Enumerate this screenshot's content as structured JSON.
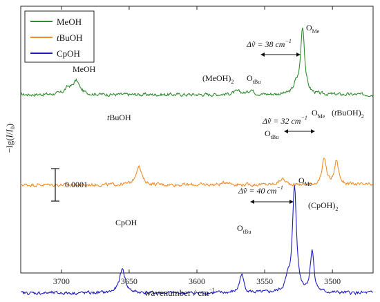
{
  "chart_data": {
    "type": "line",
    "xlabel_main": "wavenumber / cm",
    "xlabel_sup": "−1",
    "ylabel_main": "−lg(",
    "ylabel_I": "I",
    "ylabel_slash": "/",
    "ylabel_I0": "I",
    "ylabel_sub": "0",
    "ylabel_end": ")",
    "x_reversed": true,
    "xlim": [
      3730,
      3470
    ],
    "xticks": [
      3700,
      3650,
      3600,
      3550,
      3500
    ],
    "scale_bar_label": "0.0001",
    "legend": {
      "placement": "top-left",
      "entries": [
        {
          "name": "MeOH",
          "italic_prefix": "",
          "color": "#2e8b2e"
        },
        {
          "name": "BuOH",
          "italic_prefix": "t",
          "color": "#f28c28"
        },
        {
          "name": "CpOH",
          "italic_prefix": "",
          "color": "#1c1cbf"
        }
      ]
    },
    "series": [
      {
        "name": "MeOH",
        "color": "#2e8b2e",
        "baseline": 0.0,
        "peaks": [
          {
            "x": 3522,
            "height": 6.7,
            "width": 1.8
          },
          {
            "x": 3689,
            "height": 1.3,
            "width": 3
          },
          {
            "x": 3695,
            "height": 0.6,
            "width": 3
          },
          {
            "x": 3570,
            "height": 0.3,
            "width": 4
          },
          {
            "x": 3560,
            "height": 0.5,
            "width": 2
          },
          {
            "x": 3527,
            "height": 0.8,
            "width": 2
          }
        ]
      },
      {
        "name": "BuOH",
        "color": "#f28c28",
        "baseline": -9.0,
        "peaks": [
          {
            "x": 3643,
            "height": 1.9,
            "width": 2.5
          },
          {
            "x": 3506,
            "height": 2.6,
            "width": 1.8
          },
          {
            "x": 3497,
            "height": 2.4,
            "width": 1.8
          },
          {
            "x": 3537,
            "height": 0.6,
            "width": 2.5
          },
          {
            "x": 3578,
            "height": 0.3,
            "width": 3
          }
        ]
      },
      {
        "name": "CpOH",
        "color": "#1c1cbf",
        "baseline": -19.8,
        "peaks": [
          {
            "x": 3655,
            "height": 2.4,
            "width": 2.5
          },
          {
            "x": 3567,
            "height": 1.9,
            "width": 1.8
          },
          {
            "x": 3528,
            "height": 10.6,
            "width": 1.8
          },
          {
            "x": 3515,
            "height": 4.2,
            "width": 1.6
          },
          {
            "x": 3533,
            "height": 1.0,
            "width": 2
          }
        ]
      }
    ],
    "annotations": [
      {
        "id": "meoh-ome",
        "main": "O",
        "sub": "Me"
      },
      {
        "id": "meoh-otbu",
        "main": "O",
        "sub": "tBu"
      },
      {
        "id": "meoh-dimer",
        "main": "(MeOH)",
        "sub": "2"
      },
      {
        "id": "meoh-mono",
        "main": "MeOH",
        "sub": ""
      },
      {
        "id": "meoh-delta",
        "main": "Δṽ = 38 cm",
        "sup": "−1"
      },
      {
        "id": "tbuoh-mono",
        "italic": "t",
        "main": "BuOH",
        "sub": ""
      },
      {
        "id": "tbuoh-otbu",
        "main": "O",
        "sub": "tBu"
      },
      {
        "id": "tbuoh-ome",
        "main": "O",
        "sub": "Me"
      },
      {
        "id": "tbuoh-dimer",
        "italic": "t",
        "main": "(",
        "rest": "BuOH)",
        "sub": "2"
      },
      {
        "id": "tbuoh-delta",
        "main": "Δṽ = 32 cm",
        "sup": "−1"
      },
      {
        "id": "cpoh-mono",
        "main": "CpOH",
        "sub": ""
      },
      {
        "id": "cpoh-otbu",
        "main": "O",
        "sub": "tBu"
      },
      {
        "id": "cpoh-ome",
        "main": "O",
        "sub": "Me"
      },
      {
        "id": "cpoh-dimer",
        "main": "(CpOH)",
        "sub": "2"
      },
      {
        "id": "cpoh-delta",
        "main": "Δṽ = 40 cm",
        "sup": "−1"
      }
    ]
  }
}
